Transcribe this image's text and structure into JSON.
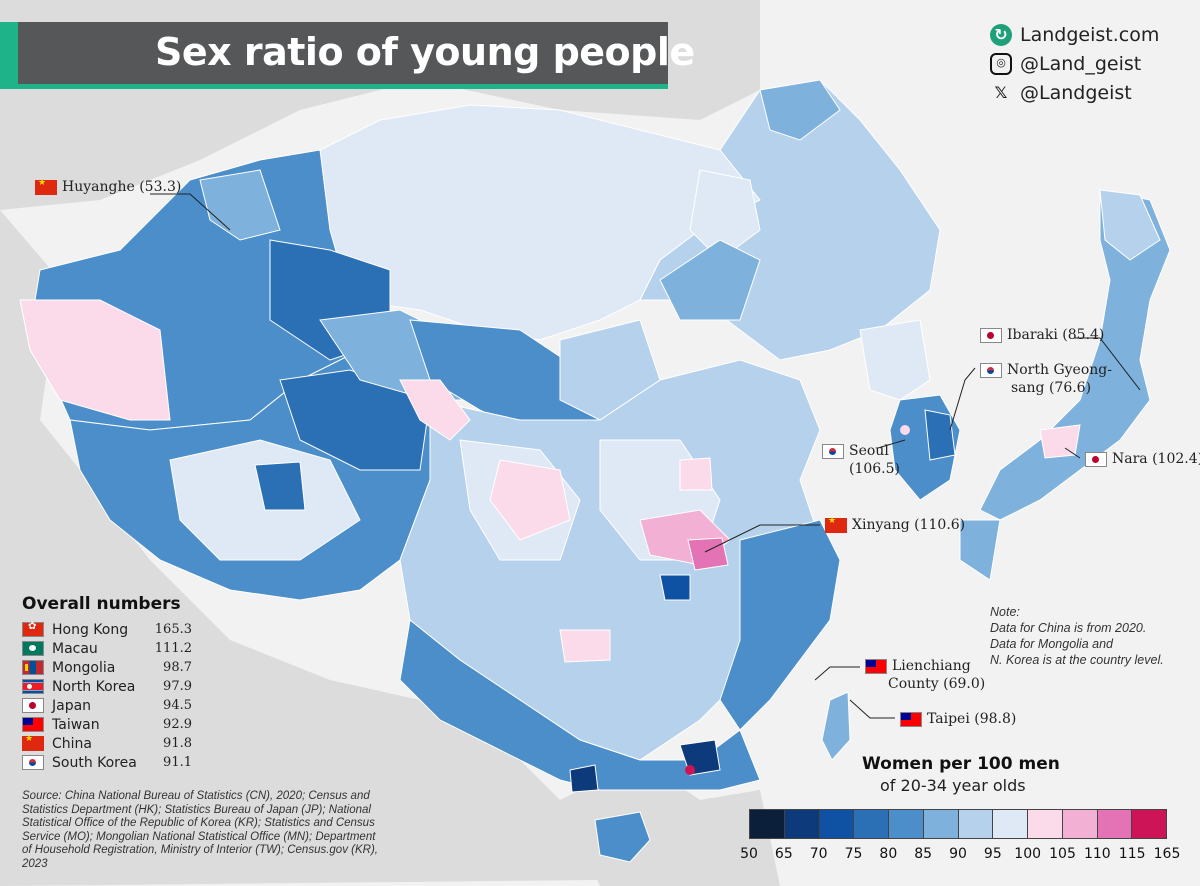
{
  "title": "Sex ratio of young people",
  "brand": {
    "website": "Landgeist.com",
    "instagram": "@Land_geist",
    "x": "@Landgeist"
  },
  "callouts": [
    {
      "id": "huyanghe",
      "flag": "cn",
      "text": "Huyanghe (53.3)"
    },
    {
      "id": "ibaraki",
      "flag": "jp",
      "text": "Ibaraki (85.4)"
    },
    {
      "id": "north-gyeongsang",
      "flag": "kr",
      "text": "North Gyeong-",
      "text2": "sang (76.6)"
    },
    {
      "id": "seoul",
      "flag": "kr",
      "text": "Seoul",
      "text2": "(106.5)"
    },
    {
      "id": "nara",
      "flag": "jp",
      "text": "Nara (102.4)"
    },
    {
      "id": "xinyang",
      "flag": "cn",
      "text": "Xinyang (110.6)"
    },
    {
      "id": "lienchiang",
      "flag": "tw",
      "text": "Lienchiang",
      "text2": "County (69.0)"
    },
    {
      "id": "taipei",
      "flag": "tw",
      "text": "Taipei (98.8)"
    }
  ],
  "overall": {
    "heading": "Overall numbers",
    "rows": [
      {
        "flag": "hk",
        "country": "Hong Kong",
        "value": "165.3"
      },
      {
        "flag": "mo",
        "country": "Macau",
        "value": "111.2"
      },
      {
        "flag": "mn",
        "country": "Mongolia",
        "value": "98.7"
      },
      {
        "flag": "kp",
        "country": "North Korea",
        "value": "97.9"
      },
      {
        "flag": "jp",
        "country": "Japan",
        "value": "94.5"
      },
      {
        "flag": "tw",
        "country": "Taiwan",
        "value": "92.9"
      },
      {
        "flag": "cn",
        "country": "China",
        "value": "91.8"
      },
      {
        "flag": "kr",
        "country": "South Korea",
        "value": "91.1"
      }
    ]
  },
  "source": "Source: China National Bureau of Statistics (CN), 2020; Census and Statistics Department (HK); Statistics Bureau of Japan (JP); National Statistical Office of the Republic of Korea (KR); Statistics and Census Service (MO); Mongolian National Statistical Office (MN); Department of Household Registration, Ministry of Interior (TW); Census.gov (KR), 2023",
  "note": {
    "heading": "Note:",
    "line1": "Data for China is from 2020.",
    "line2": "Data for Mongolia and",
    "line3": "N. Korea is at the country level."
  },
  "legend": {
    "title": "Women per 100 men",
    "subtitle": "of 20-34 year olds",
    "colors": [
      "#0b1f3a",
      "#0d3a7a",
      "#0f52a3",
      "#2b6fb5",
      "#4b8ec9",
      "#7eb1dc",
      "#b5d1eb",
      "#dfe9f5",
      "#fbdbea",
      "#f2b1d4",
      "#e373b4",
      "#cc1457"
    ],
    "labels": [
      "50",
      "65",
      "70",
      "75",
      "80",
      "85",
      "90",
      "95",
      "100",
      "105",
      "110",
      "115",
      "165"
    ]
  },
  "colors": {
    "title_bg": "#555759",
    "accent": "#1fb38a",
    "land_bg": "#d9d9d9",
    "sea": "#f4f4f4"
  }
}
